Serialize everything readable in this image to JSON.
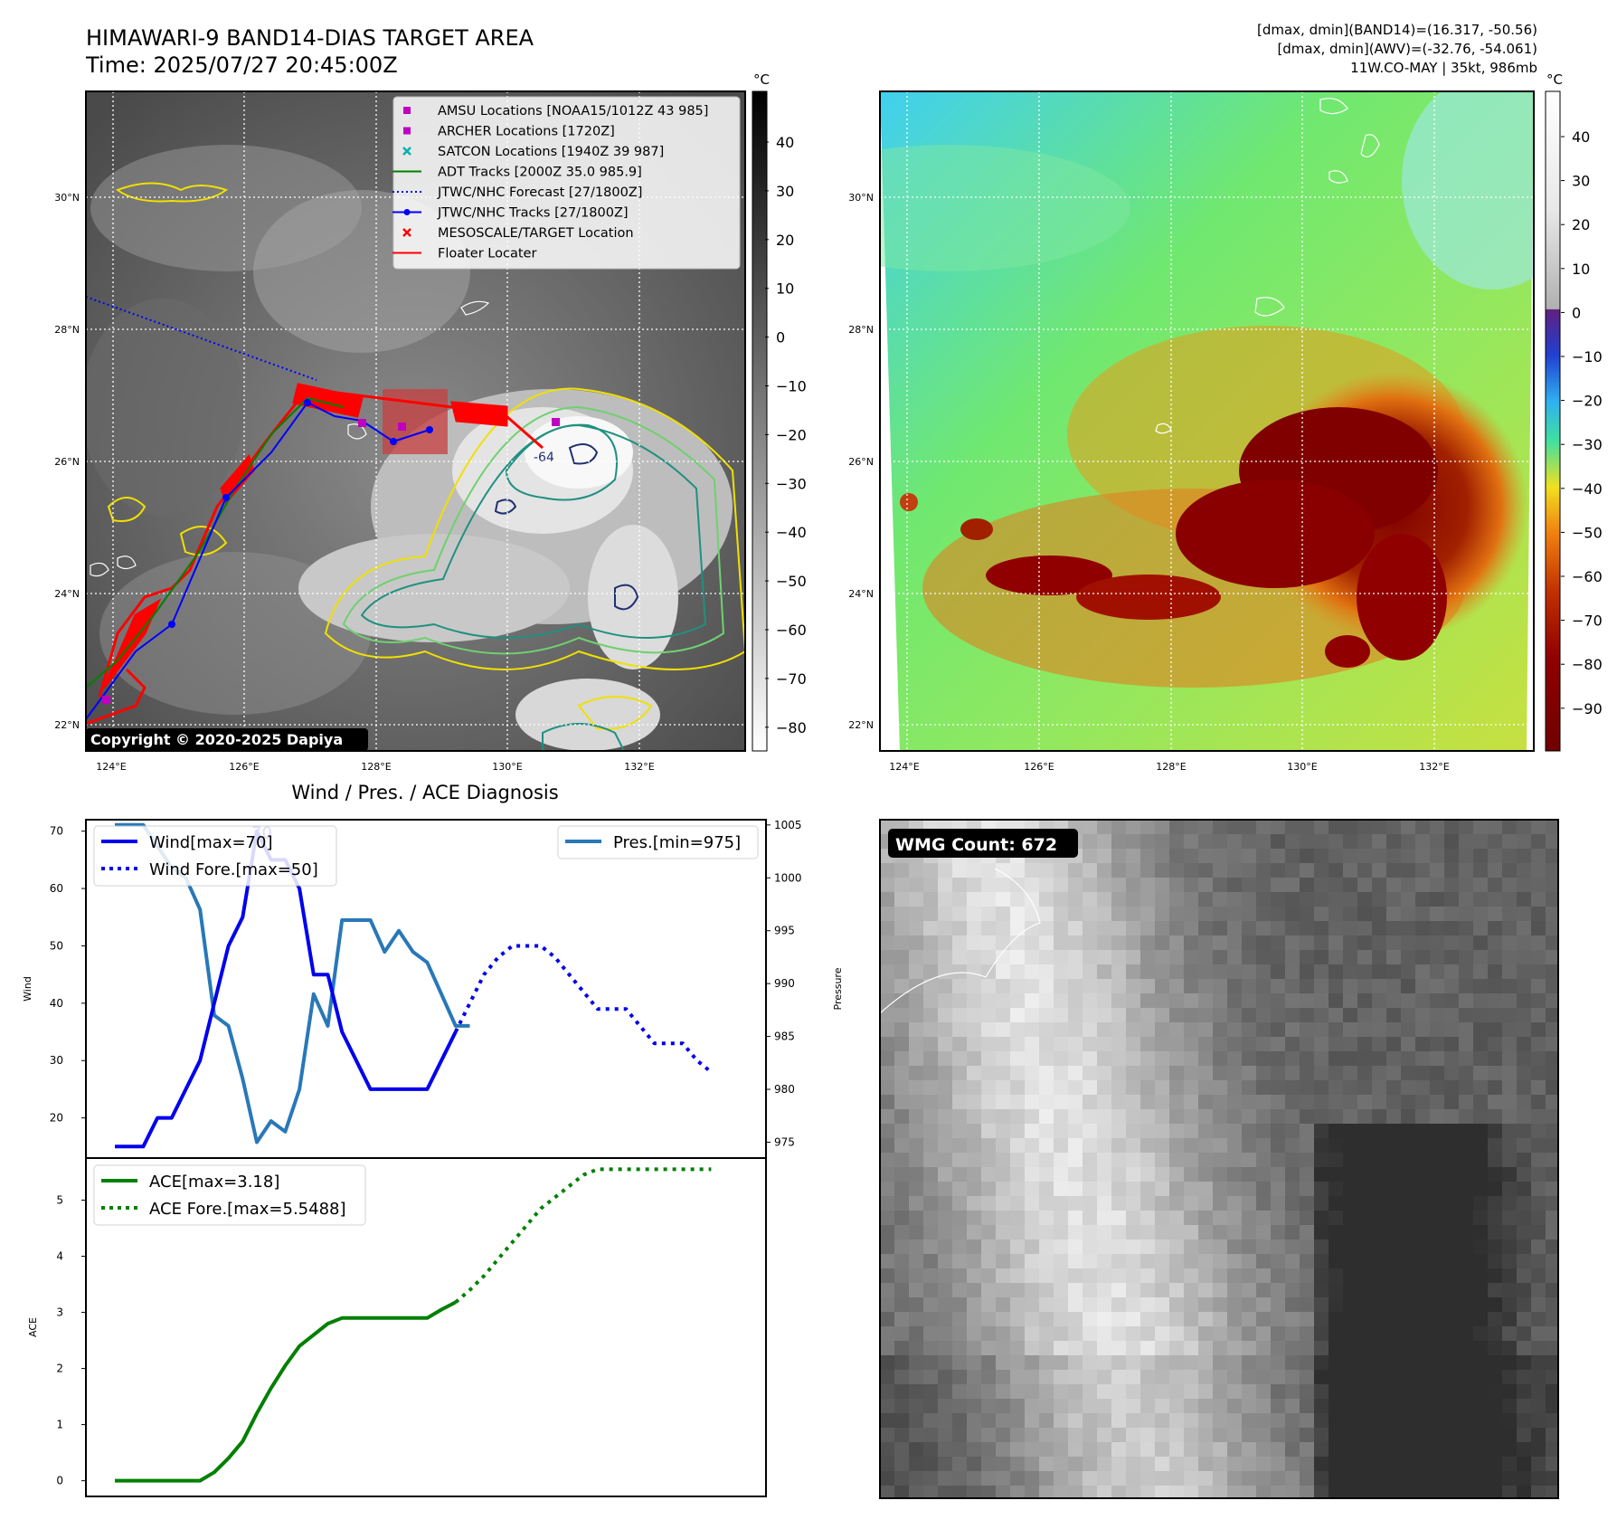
{
  "header": {
    "title": "HIMAWARI-9 BAND14-DIAS TARGET AREA",
    "time": "Time: 2025/07/27 20:45:00Z",
    "dmax_band14": "[dmax, dmin](BAND14)=(16.317, -50.56)",
    "dmax_awv": "[dmax, dmin](AWV)=(-32.76, -54.061)",
    "storm": "11W.CO-MAY | 35kt, 986mb"
  },
  "map_left": {
    "lat_ticks": [
      "30°N",
      "28°N",
      "26°N",
      "24°N",
      "22°N"
    ],
    "lon_ticks": [
      "124°E",
      "126°E",
      "128°E",
      "130°E",
      "132°E"
    ],
    "copyright": "Copyright © 2020-2025 Dapiya",
    "colorbar_unit": "°C",
    "colorbar_ticks": [
      "40",
      "30",
      "20",
      "10",
      "0",
      "−10",
      "−20",
      "−30",
      "−40",
      "−50",
      "−60",
      "−70",
      "−80"
    ],
    "contour_label": "-64",
    "legend": [
      {
        "label": "AMSU Locations [NOAA15/1012Z 43 985]",
        "color": "#c000c0",
        "marker": "square"
      },
      {
        "label": "ARCHER Locations [1720Z]",
        "color": "#c000c0",
        "marker": "square"
      },
      {
        "label": "SATCON Locations [1940Z 39 987]",
        "color": "#00b0b0",
        "marker": "x"
      },
      {
        "label": "ADT Tracks [2000Z 35.0 985.9]",
        "color": "#008000",
        "marker": "line"
      },
      {
        "label": "JTWC/NHC Forecast [27/1800Z]",
        "color": "#0000ff",
        "marker": "dotted"
      },
      {
        "label": "JTWC/NHC Tracks [27/1800Z]",
        "color": "#0000ff",
        "marker": "line-dot"
      },
      {
        "label": "MESOSCALE/TARGET Location",
        "color": "#ff0000",
        "marker": "x"
      },
      {
        "label": "Floater Locater",
        "color": "#ff0000",
        "marker": "line"
      }
    ]
  },
  "map_right": {
    "lat_ticks": [
      "30°N",
      "28°N",
      "26°N",
      "24°N",
      "22°N"
    ],
    "lon_ticks": [
      "124°E",
      "126°E",
      "128°E",
      "130°E",
      "132°E"
    ],
    "colorbar_unit": "°C",
    "colorbar_ticks": [
      "40",
      "30",
      "20",
      "10",
      "0",
      "−10",
      "−20",
      "−30",
      "−40",
      "−50",
      "−60",
      "−70",
      "−80",
      "−90"
    ]
  },
  "wmg": {
    "label": "WMG Count: 672"
  },
  "chart_data": [
    {
      "type": "line",
      "title": "Wind / Pres. / ACE Diagnosis",
      "ylabel": "Wind",
      "ylabel_right": "Pressure",
      "ylim": [
        13,
        72
      ],
      "ylim_right": [
        973.5,
        1005.5
      ],
      "yticks": [
        20,
        30,
        40,
        50,
        60,
        70
      ],
      "yticks_right": [
        975,
        980,
        985,
        990,
        995,
        1000,
        1005
      ],
      "series": [
        {
          "name": "Wind[max=70]",
          "color": "#0000ee",
          "style": "solid",
          "axis": "left",
          "x": [
            0,
            1,
            2,
            3,
            4,
            5,
            6,
            7,
            8,
            9,
            10,
            11,
            12,
            13,
            14,
            15,
            16,
            17,
            18,
            19,
            20,
            21,
            22,
            23,
            24
          ],
          "values": [
            15,
            15,
            15,
            20,
            20,
            25,
            30,
            40,
            50,
            55,
            70,
            65,
            65,
            60,
            45,
            45,
            35,
            30,
            25,
            25,
            25,
            25,
            25,
            30,
            35
          ]
        },
        {
          "name": "Wind Fore.[max=50]",
          "color": "#0000ee",
          "style": "dotted",
          "axis": "left",
          "x": [
            24,
            25,
            26,
            27,
            28,
            29,
            30,
            31,
            32,
            33,
            34,
            35,
            36,
            37,
            38,
            39,
            40,
            41,
            42
          ],
          "values": [
            35,
            40,
            45,
            48,
            50,
            50,
            50,
            48,
            45,
            42,
            39,
            39,
            39,
            36,
            33,
            33,
            33,
            30,
            28
          ]
        },
        {
          "name": "Pres.[min=975]",
          "color": "#2878b8",
          "style": "solid",
          "axis": "right",
          "x": [
            0,
            1,
            2,
            3,
            4,
            5,
            6,
            7,
            8,
            9,
            10,
            11,
            12,
            13,
            14,
            15,
            16,
            17,
            18,
            19,
            20,
            21,
            22,
            23,
            24,
            25
          ],
          "values": [
            1005,
            1005,
            1005,
            1003,
            1001,
            1000,
            997,
            987,
            986,
            981,
            975,
            977,
            976,
            980,
            989,
            986,
            996,
            996,
            996,
            993,
            995,
            993,
            992,
            989,
            986,
            986
          ]
        }
      ],
      "annotation": "70"
    },
    {
      "type": "line",
      "ylabel": "ACE",
      "ylim": [
        -0.28,
        5.75
      ],
      "yticks": [
        0,
        1,
        2,
        3,
        4,
        5
      ],
      "series": [
        {
          "name": "ACE[max=3.18]",
          "color": "#008000",
          "style": "solid",
          "x": [
            0,
            2,
            4,
            6,
            7,
            8,
            9,
            10,
            11,
            12,
            13,
            14,
            15,
            16,
            17,
            18,
            19,
            20,
            21,
            22,
            23,
            24
          ],
          "values": [
            0,
            0,
            0,
            0,
            0.15,
            0.4,
            0.7,
            1.2,
            1.65,
            2.05,
            2.4,
            2.6,
            2.8,
            2.9,
            2.9,
            2.9,
            2.9,
            2.9,
            2.9,
            2.9,
            3.05,
            3.18
          ]
        },
        {
          "name": "ACE Fore.[max=5.5488]",
          "color": "#008000",
          "style": "dotted",
          "x": [
            24,
            25,
            26,
            27,
            28,
            29,
            30,
            31,
            32,
            33,
            34,
            35,
            36,
            37,
            38,
            39,
            40,
            41,
            42
          ],
          "values": [
            3.18,
            3.4,
            3.65,
            3.95,
            4.25,
            4.55,
            4.85,
            5.05,
            5.25,
            5.45,
            5.55,
            5.55,
            5.55,
            5.55,
            5.55,
            5.55,
            5.55,
            5.55,
            5.55
          ]
        }
      ]
    }
  ],
  "colors": {
    "wind": "#0000ee",
    "pressure": "#2878b8",
    "ace": "#008000",
    "contour_yellow": "#f0e000",
    "contour_teal": "#209080",
    "contour_navy": "#203070",
    "track_red": "#ff0000"
  }
}
